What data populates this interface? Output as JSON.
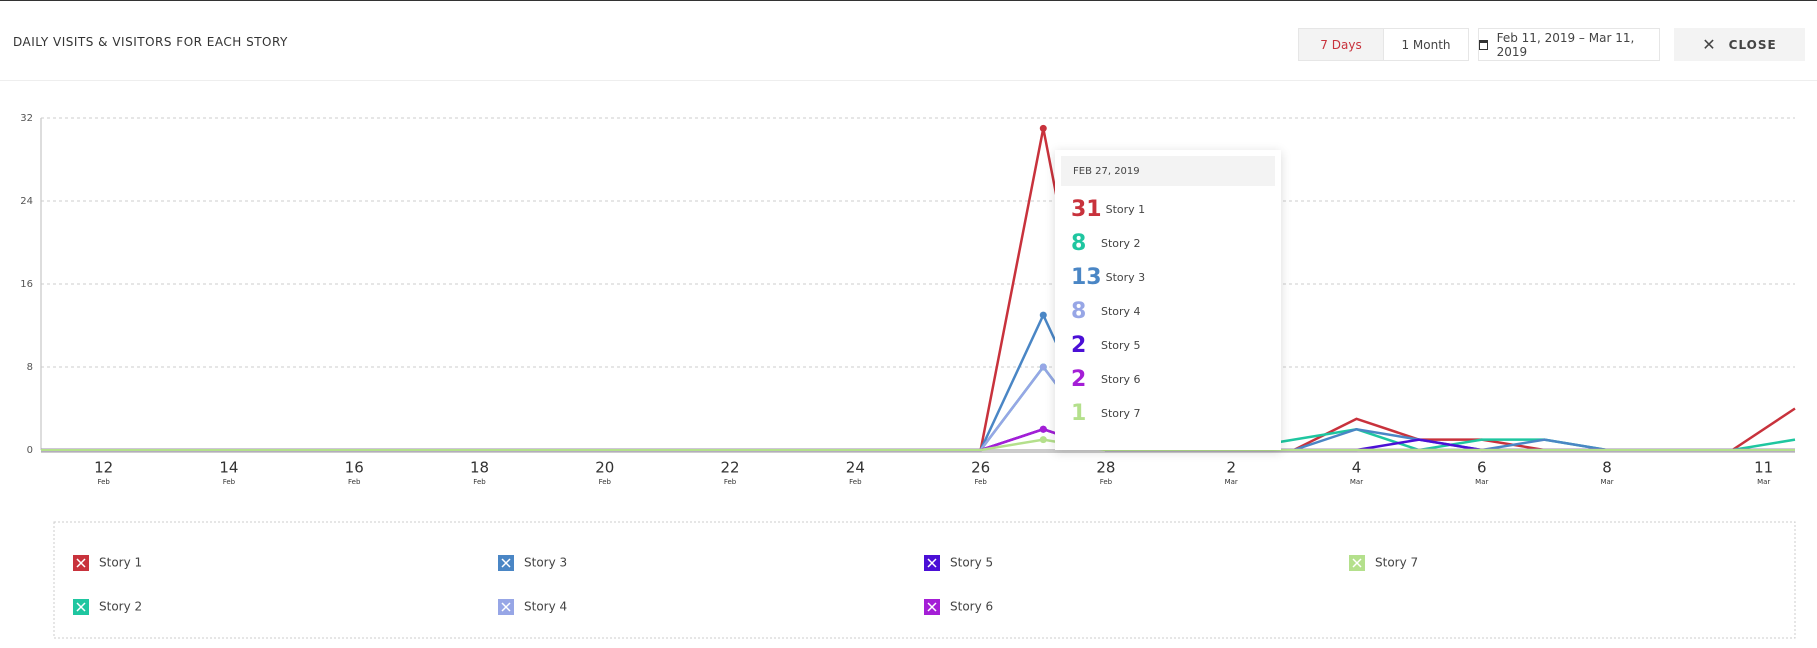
{
  "header": {
    "title": "DAILY VISITS & VISITORS FOR EACH STORY",
    "range_buttons": [
      "7 Days",
      "1 Month"
    ],
    "date_range": "Feb 11, 2019 – Mar 11, 2019",
    "close": "CLOSE"
  },
  "chart_data": {
    "type": "line",
    "categories": [
      null,
      {
        "day": "12",
        "month": "Feb"
      },
      null,
      {
        "day": "14",
        "month": "Feb"
      },
      null,
      {
        "day": "16",
        "month": "Feb"
      },
      null,
      {
        "day": "18",
        "month": "Feb"
      },
      null,
      {
        "day": "20",
        "month": "Feb"
      },
      null,
      {
        "day": "22",
        "month": "Feb"
      },
      null,
      {
        "day": "24",
        "month": "Feb"
      },
      null,
      {
        "day": "26",
        "month": "Feb"
      },
      null,
      {
        "day": "28",
        "month": "Feb"
      },
      null,
      {
        "day": "2",
        "month": "Mar"
      },
      null,
      {
        "day": "4",
        "month": "Mar"
      },
      null,
      {
        "day": "6",
        "month": "Mar"
      },
      null,
      {
        "day": "8",
        "month": "Mar"
      },
      null,
      null,
      {
        "day": "11",
        "month": "Mar"
      }
    ],
    "series": [
      {
        "name": "Story 1",
        "color": "#c8323c",
        "values": [
          0,
          0,
          0,
          0,
          0,
          0,
          0,
          0,
          0,
          0,
          0,
          0,
          0,
          0,
          0,
          0,
          31,
          0,
          0,
          0,
          0,
          3,
          1,
          1,
          0,
          0,
          0,
          0,
          4
        ]
      },
      {
        "name": "Story 2",
        "color": "#1fc6a0",
        "values": [
          0,
          0,
          0,
          0,
          0,
          0,
          0,
          0,
          0,
          0,
          0,
          0,
          0,
          0,
          0,
          0,
          8,
          0,
          0,
          0,
          1,
          2,
          0,
          1,
          1,
          0,
          0,
          0,
          1
        ]
      },
      {
        "name": "Story 3",
        "color": "#4a86c5",
        "values": [
          0,
          0,
          0,
          0,
          0,
          0,
          0,
          0,
          0,
          0,
          0,
          0,
          0,
          0,
          0,
          0,
          13,
          0,
          0,
          0,
          0,
          2,
          1,
          0,
          1,
          0,
          0,
          0,
          0
        ]
      },
      {
        "name": "Story 4",
        "color": "#97a6e6",
        "values": [
          0,
          0,
          0,
          0,
          0,
          0,
          0,
          0,
          0,
          0,
          0,
          0,
          0,
          0,
          0,
          0,
          8,
          0,
          0,
          0,
          0,
          0,
          0,
          0,
          0,
          0,
          0,
          0,
          0
        ]
      },
      {
        "name": "Story 5",
        "color": "#4b0fd6",
        "values": [
          0,
          0,
          0,
          0,
          0,
          0,
          0,
          0,
          0,
          0,
          0,
          0,
          0,
          0,
          0,
          0,
          2,
          0,
          0,
          0,
          0,
          0,
          1,
          0,
          0,
          0,
          0,
          0,
          0
        ]
      },
      {
        "name": "Story 6",
        "color": "#a41ed6",
        "values": [
          0,
          0,
          0,
          0,
          0,
          0,
          0,
          0,
          0,
          0,
          0,
          0,
          0,
          0,
          0,
          0,
          2,
          0,
          0,
          0,
          0,
          0,
          0,
          0,
          0,
          0,
          0,
          0,
          0
        ]
      },
      {
        "name": "Story 7",
        "color": "#b4e08c",
        "values": [
          0,
          0,
          0,
          0,
          0,
          0,
          0,
          0,
          0,
          0,
          0,
          0,
          0,
          0,
          0,
          0,
          1,
          0,
          0,
          0,
          0,
          0,
          0,
          0,
          0,
          0,
          0,
          0,
          0
        ]
      }
    ],
    "ylim": [
      0,
      32
    ],
    "yticks": [
      0,
      8,
      16,
      24,
      32
    ],
    "grid": true,
    "tooltip": {
      "title": "FEB 27, 2019",
      "index": 16
    }
  }
}
